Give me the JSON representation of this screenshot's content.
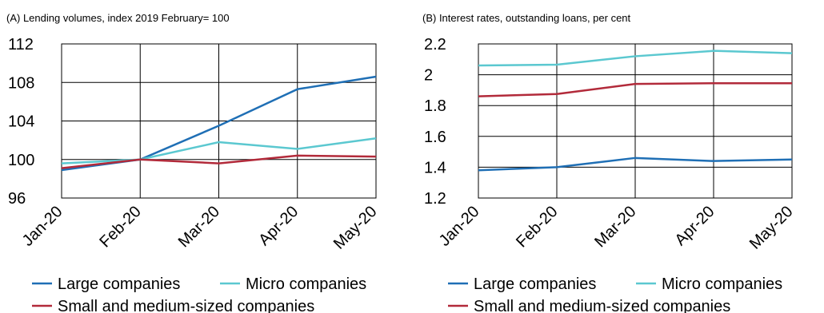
{
  "chart_data": [
    {
      "type": "line",
      "subtitle": "(A) Lending volumes, index 2019 February= 100",
      "categories": [
        "Jan-20",
        "Feb-20",
        "Mar-20",
        "Apr-20",
        "May-20"
      ],
      "series": [
        {
          "name": "Large companies",
          "color": "#1f6fb5",
          "values": [
            98.9,
            100,
            103.5,
            107.3,
            108.6
          ]
        },
        {
          "name": "Micro companies",
          "color": "#5bc8d0",
          "values": [
            99.6,
            100,
            101.8,
            101.1,
            102.2
          ]
        },
        {
          "name": "Small and medium-sized companies",
          "color": "#b22a3a",
          "values": [
            99.1,
            100,
            99.6,
            100.4,
            100.3
          ]
        }
      ],
      "ylim": [
        96,
        112
      ],
      "yticks": [
        96,
        100,
        104,
        108,
        112
      ],
      "grid": true
    },
    {
      "type": "line",
      "subtitle": "(B) Interest rates, outstanding loans, per cent",
      "categories": [
        "Jan-20",
        "Feb-20",
        "Mar-20",
        "Apr-20",
        "May-20"
      ],
      "series": [
        {
          "name": "Large companies",
          "color": "#1f6fb5",
          "values": [
            1.38,
            1.4,
            1.46,
            1.44,
            1.45
          ]
        },
        {
          "name": "Micro companies",
          "color": "#5bc8d0",
          "values": [
            2.06,
            2.065,
            2.12,
            2.155,
            2.14
          ]
        },
        {
          "name": "Small and medium-sized companies",
          "color": "#b22a3a",
          "values": [
            1.86,
            1.875,
            1.94,
            1.945,
            1.945
          ]
        }
      ],
      "ylim": [
        1.2,
        2.2
      ],
      "yticks": [
        1.2,
        1.4,
        1.6,
        1.8,
        2,
        2.2
      ],
      "grid": true
    }
  ]
}
